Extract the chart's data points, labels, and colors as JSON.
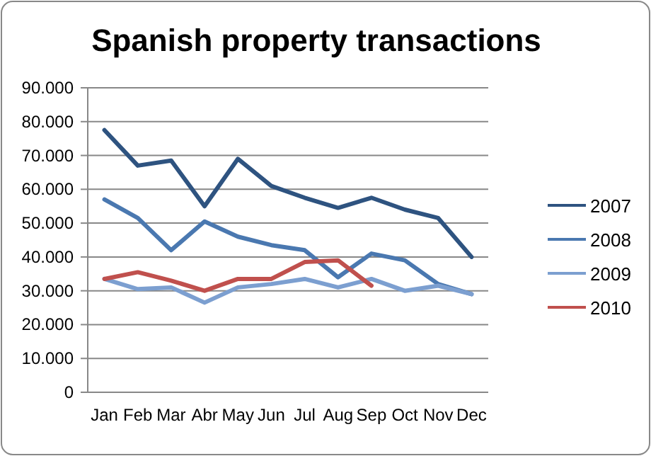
{
  "chart_data": {
    "type": "line",
    "title": "Spanish property transactions",
    "categories": [
      "Jan",
      "Feb",
      "Mar",
      "Abr",
      "May",
      "Jun",
      "Jul",
      "Aug",
      "Sep",
      "Oct",
      "Nov",
      "Dec"
    ],
    "series": [
      {
        "name": "2007",
        "color": "#2e5380",
        "values": [
          77500,
          67000,
          68500,
          55000,
          69000,
          61000,
          57500,
          54500,
          57500,
          54000,
          51500,
          40000
        ]
      },
      {
        "name": "2008",
        "color": "#4a78b0",
        "values": [
          57000,
          51500,
          42000,
          50500,
          46000,
          43500,
          42000,
          34000,
          41000,
          39000,
          32000,
          29000
        ]
      },
      {
        "name": "2009",
        "color": "#7c9fd0",
        "values": [
          33500,
          30500,
          31000,
          26500,
          31000,
          32000,
          33500,
          31000,
          33500,
          30000,
          31500,
          29000
        ]
      },
      {
        "name": "2010",
        "color": "#c0504d",
        "values": [
          33500,
          35500,
          33000,
          30000,
          33500,
          33500,
          38500,
          39000,
          31500,
          null,
          null,
          null
        ]
      }
    ],
    "ylim": [
      0,
      90000
    ],
    "yticks": [
      0,
      {
        "value": 10000,
        "label": "10.000"
      },
      {
        "value": 20000,
        "label": "20.000"
      },
      {
        "value": 30000,
        "label": "30.000"
      },
      {
        "value": 40000,
        "label": "40.000"
      },
      {
        "value": 50000,
        "label": "50.000"
      },
      {
        "value": 60000,
        "label": "60.000"
      },
      {
        "value": 70000,
        "label": "70.000"
      },
      {
        "value": 80000,
        "label": "80.000"
      },
      {
        "value": 90000,
        "label": "90.000"
      }
    ],
    "grid": "y",
    "legend": "right",
    "marker": "none",
    "line_style": "solid"
  }
}
